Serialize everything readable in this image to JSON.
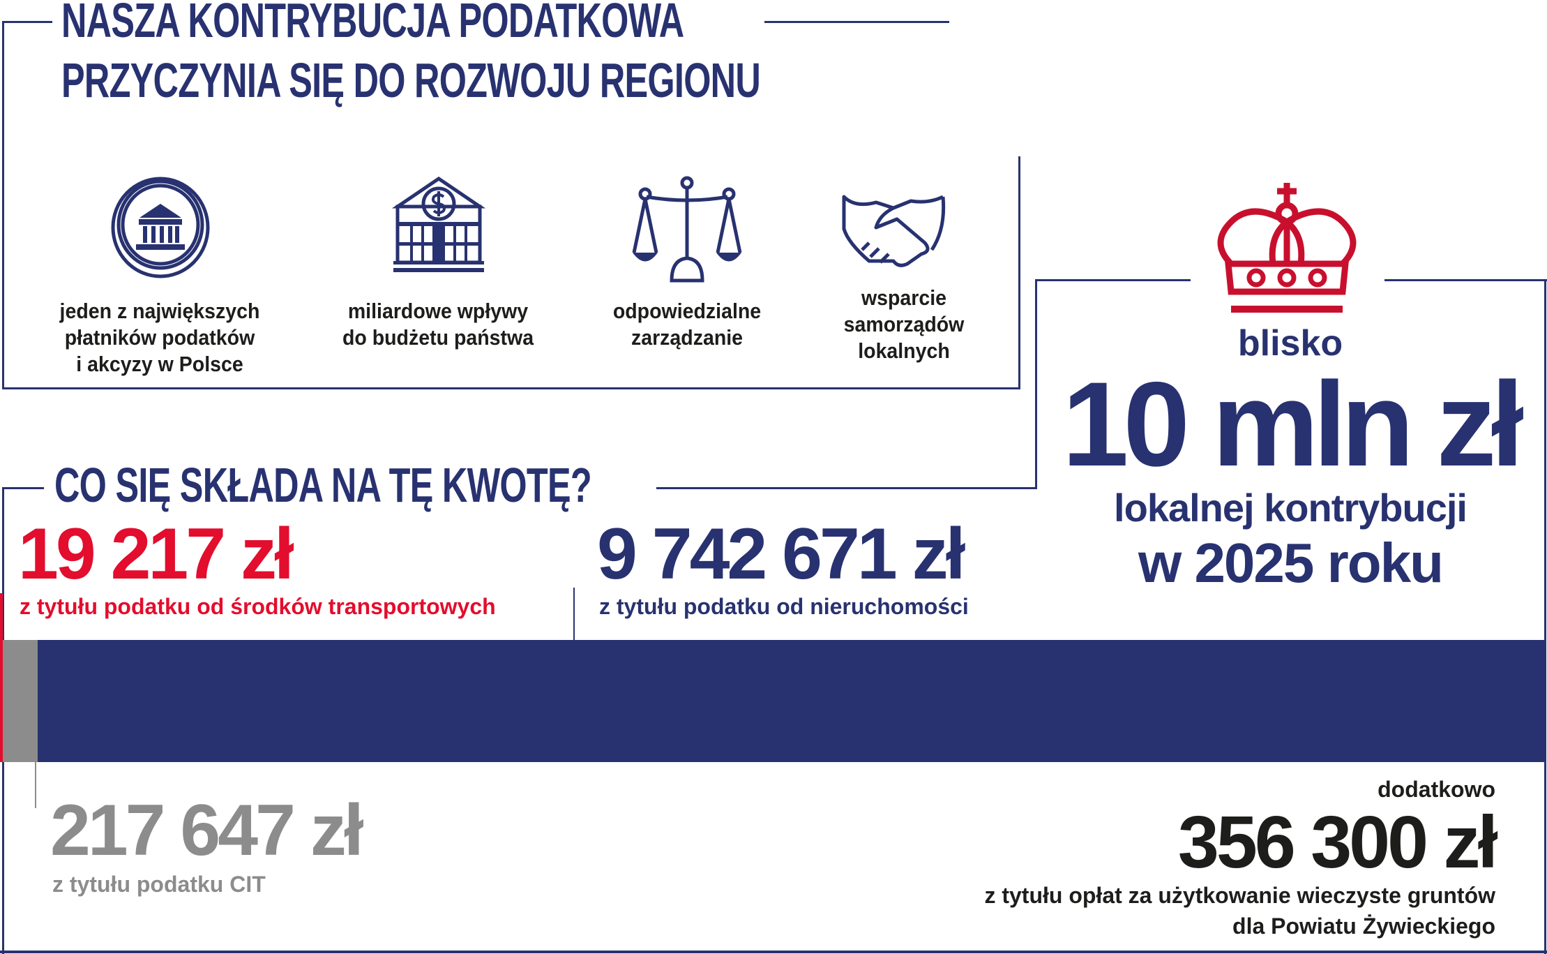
{
  "header": {
    "title_line1": "NASZA KONTRYBUCJA PODATKOWA",
    "title_line2": "PRZYCZYNIA SIĘ DO ROZWOJU REGIONU"
  },
  "features": [
    {
      "icon": "coin-bank-icon",
      "line1": "jeden z największych",
      "line2": "płatników podatków",
      "line3": "i akcyzy w Polsce"
    },
    {
      "icon": "bank-dollar-icon",
      "line1": "miliardowe wpływy",
      "line2": "do budżetu państwa",
      "line3": ""
    },
    {
      "icon": "scales-icon",
      "line1": "odpowiedzialne",
      "line2": "zarządzanie",
      "line3": ""
    },
    {
      "icon": "handshake-icon",
      "line1": "wsparcie",
      "line2": "samorządów",
      "line3": "lokalnych"
    }
  ],
  "summary": {
    "icon": "crown-icon",
    "prefix": "blisko",
    "amount": "10 mln zł",
    "line1": "lokalnej kontrybucji",
    "line2": "w 2025 roku"
  },
  "breakdown": {
    "heading": "CO SIĘ SKŁADA NA TĘ KWOTĘ?",
    "transport": {
      "amount": "19 217 zł",
      "label": "z tytułu podatku od środków transportowych"
    },
    "property": {
      "amount": "9 742 671 zł",
      "label": "z tytułu podatku od nieruchomości"
    },
    "cit": {
      "amount": "217 647 zł",
      "label": "z tytułu podatku CIT"
    },
    "land": {
      "prefix": "dodatkowo",
      "amount": "356 300 zł",
      "label1": "z tytułu opłat za użytkowanie wieczyste gruntów",
      "label2": "dla Powiatu Żywieckiego"
    }
  },
  "colors": {
    "navy": "#283270",
    "red": "#e30d2d",
    "crown_red": "#c8102e",
    "gray": "#8c8c8c",
    "black": "#1d1d1b"
  }
}
